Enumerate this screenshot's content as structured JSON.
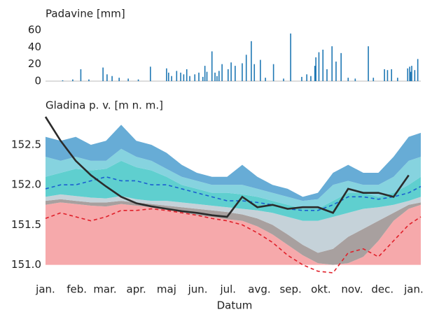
{
  "chart_data": [
    {
      "type": "bar",
      "ylabel": "Padavine [mm]",
      "color": "#1f78b4",
      "xlim": [
        0,
        372
      ],
      "ylim": [
        0,
        62
      ],
      "yticks": [
        0,
        20,
        40,
        60
      ],
      "x": [
        17,
        27,
        35,
        43,
        57,
        61,
        66,
        73,
        82,
        92,
        104,
        120,
        122,
        125,
        130,
        134,
        137,
        140,
        143,
        148,
        152,
        156,
        158,
        160,
        165,
        168,
        170,
        172,
        175,
        181,
        184,
        188,
        195,
        199,
        204,
        207,
        213,
        218,
        226,
        236,
        243,
        254,
        259,
        263,
        267,
        268,
        271,
        275,
        279,
        284,
        288,
        293,
        300,
        307,
        320,
        325,
        336,
        339,
        343,
        349,
        359,
        361,
        362,
        363,
        366,
        369
      ],
      "values": [
        1,
        2,
        14,
        2,
        16,
        8,
        6,
        4,
        3,
        2,
        17,
        15,
        10,
        6,
        12,
        10,
        8,
        14,
        6,
        8,
        10,
        5,
        18,
        11,
        35,
        10,
        6,
        12,
        20,
        14,
        22,
        18,
        21,
        31,
        47,
        20,
        25,
        4,
        20,
        3,
        56,
        5,
        8,
        6,
        18,
        28,
        34,
        37,
        14,
        41,
        23,
        33,
        4,
        3,
        41,
        4,
        14,
        13,
        14,
        4,
        15,
        17,
        11,
        18,
        13,
        26
      ]
    },
    {
      "type": "band-line",
      "ylabel": "Gladina p. v. [m n. m.]",
      "xlabel": "Datum",
      "xlim": [
        0,
        372
      ],
      "ylim": [
        150.9,
        152.85
      ],
      "yticks": [
        {
          "value": 151,
          "label": "151.0"
        },
        151.5,
        {
          "value": 152,
          "label": "152.0"
        },
        152.5
      ],
      "xticks": [
        {
          "value": 0,
          "label": "jan."
        },
        {
          "value": 31,
          "label": "feb."
        },
        {
          "value": 59,
          "label": "mar."
        },
        {
          "value": 90,
          "label": "apr."
        },
        {
          "value": 120,
          "label": "maj"
        },
        {
          "value": 151,
          "label": "jun."
        },
        {
          "value": 181,
          "label": "jul."
        },
        {
          "value": 212,
          "label": "avg."
        },
        {
          "value": 243,
          "label": "sep."
        },
        {
          "value": 273,
          "label": "okt."
        },
        {
          "value": 304,
          "label": "nov."
        },
        {
          "value": 334,
          "label": "dec."
        },
        {
          "value": 365,
          "label": "jan."
        }
      ],
      "x": [
        0,
        15,
        30,
        45,
        60,
        75,
        90,
        105,
        120,
        135,
        150,
        165,
        180,
        195,
        210,
        225,
        240,
        255,
        270,
        285,
        300,
        315,
        330,
        345,
        360,
        372
      ],
      "band_colors": [
        "#f6a9ab",
        "#a8a09f",
        "#c5d2d9",
        "#5fcfcf",
        "#86d3df",
        "#67acd6"
      ],
      "boundaries": [
        [
          151,
          151,
          151,
          151,
          151,
          151,
          151,
          151,
          151,
          151,
          151,
          151,
          151,
          151,
          151,
          151,
          151,
          151,
          151,
          151,
          151,
          151,
          151,
          151,
          151,
          151
        ],
        [
          151.75,
          151.78,
          151.76,
          151.74,
          151.73,
          151.76,
          151.74,
          151.72,
          151.7,
          151.66,
          151.62,
          151.6,
          151.57,
          151.55,
          151.48,
          151.38,
          151.25,
          151.12,
          151.02,
          151.0,
          151.02,
          151.1,
          151.3,
          151.55,
          151.7,
          151.75
        ],
        [
          151.8,
          151.82,
          151.8,
          151.78,
          151.78,
          151.8,
          151.78,
          151.76,
          151.74,
          151.72,
          151.7,
          151.68,
          151.66,
          151.63,
          151.58,
          151.5,
          151.38,
          151.25,
          151.15,
          151.2,
          151.35,
          151.45,
          151.55,
          151.65,
          151.75,
          151.78
        ],
        [
          151.85,
          151.88,
          151.86,
          151.84,
          151.83,
          151.86,
          151.82,
          151.8,
          151.8,
          151.78,
          151.76,
          151.74,
          151.72,
          151.7,
          151.68,
          151.65,
          151.6,
          151.55,
          151.55,
          151.6,
          151.65,
          151.7,
          151.72,
          151.75,
          151.8,
          151.85
        ],
        [
          152.1,
          152.15,
          152.2,
          152.18,
          152.2,
          152.3,
          152.22,
          152.18,
          152.1,
          152.0,
          151.95,
          151.9,
          151.9,
          151.88,
          151.85,
          151.8,
          151.75,
          151.7,
          151.7,
          151.8,
          151.9,
          151.9,
          151.85,
          151.9,
          152.0,
          152.1
        ],
        [
          152.35,
          152.3,
          152.35,
          152.3,
          152.3,
          152.45,
          152.35,
          152.3,
          152.2,
          152.1,
          152.05,
          152.0,
          152.0,
          152.0,
          151.95,
          151.9,
          151.85,
          151.8,
          151.82,
          152.0,
          152.05,
          152.0,
          152.0,
          152.1,
          152.3,
          152.35
        ],
        [
          152.6,
          152.55,
          152.6,
          152.5,
          152.55,
          152.75,
          152.55,
          152.5,
          152.4,
          152.25,
          152.15,
          152.1,
          152.1,
          152.25,
          152.1,
          152.0,
          151.95,
          151.85,
          151.9,
          152.15,
          152.25,
          152.15,
          152.15,
          152.35,
          152.6,
          152.65
        ]
      ],
      "series": [
        {
          "color": "#1a5fd0",
          "dashed": true,
          "values": [
            151.95,
            152.0,
            152.0,
            152.05,
            152.1,
            152.05,
            152.05,
            152.0,
            152.0,
            151.95,
            151.9,
            151.85,
            151.8,
            151.8,
            151.78,
            151.75,
            151.7,
            151.68,
            151.68,
            151.75,
            151.85,
            151.85,
            151.82,
            151.85,
            151.9,
            151.98
          ]
        },
        {
          "color": "#e0202a",
          "dashed": true,
          "values": [
            151.58,
            151.65,
            151.6,
            151.55,
            151.6,
            151.68,
            151.68,
            151.7,
            151.68,
            151.65,
            151.62,
            151.58,
            151.55,
            151.5,
            151.4,
            151.28,
            151.12,
            151.0,
            150.92,
            150.9,
            151.15,
            151.2,
            151.1,
            151.3,
            151.5,
            151.6
          ]
        },
        {
          "color": "#2b2b2b",
          "dashed": false,
          "values": [
            152.85,
            152.55,
            152.3,
            152.12,
            151.98,
            151.85,
            151.77,
            151.73,
            151.7,
            151.67,
            151.65,
            151.62,
            151.6,
            151.85,
            151.72,
            151.75,
            151.7,
            151.72,
            151.72,
            151.65,
            151.95,
            151.9,
            151.9,
            151.85,
            152.12,
            null
          ]
        }
      ]
    }
  ]
}
